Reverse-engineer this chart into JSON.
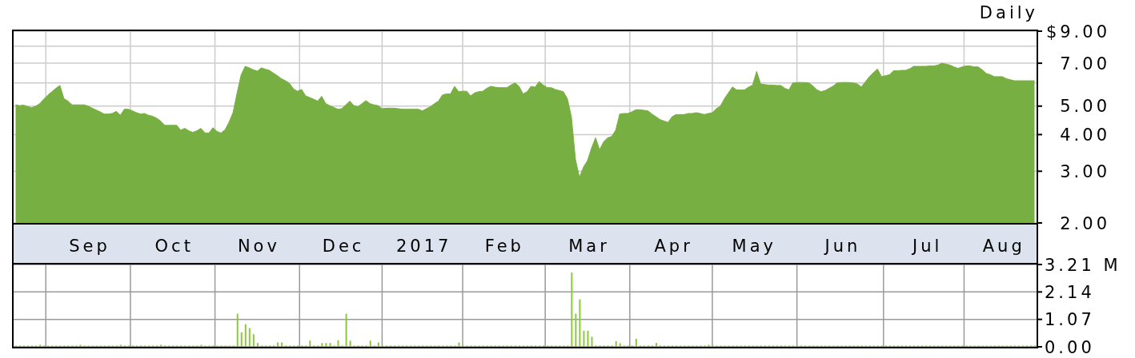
{
  "chart_data": [
    {
      "type": "area",
      "title": "Daily",
      "categories": [
        null,
        null,
        null,
        null,
        null,
        null,
        null,
        null,
        null,
        null,
        null,
        null,
        null,
        null,
        null,
        null,
        null,
        null,
        "Sep",
        null,
        null,
        null,
        null,
        null,
        null,
        null,
        null,
        null,
        null,
        null,
        null,
        null,
        null,
        null,
        null,
        null,
        null,
        null,
        null,
        "Oct",
        null,
        null,
        null,
        null,
        null,
        null,
        null,
        null,
        null,
        null,
        null,
        null,
        null,
        null,
        null,
        null,
        null,
        null,
        null,
        null,
        "Nov",
        null,
        null,
        null,
        null,
        null,
        null,
        null,
        null,
        null,
        null,
        null,
        null,
        null,
        null,
        null,
        null,
        null,
        null,
        null,
        null,
        "Dec",
        null,
        null,
        null,
        null,
        null,
        null,
        null,
        null,
        null,
        null,
        null,
        null,
        null,
        null,
        null,
        null,
        null,
        null,
        null,
        "2017",
        null,
        null,
        null,
        null,
        null,
        null,
        null,
        null,
        null,
        null,
        null,
        null,
        null,
        null,
        null,
        null,
        null,
        null,
        null,
        "Feb",
        null,
        null,
        null,
        null,
        null,
        null,
        null,
        null,
        null,
        null,
        null,
        null,
        null,
        null,
        null,
        null,
        null,
        null,
        null,
        null,
        "Mar",
        null,
        null,
        null,
        null,
        null,
        null,
        null,
        null,
        null,
        null,
        null,
        null,
        null,
        null,
        null,
        null,
        null,
        null,
        null,
        null,
        "Apr",
        null,
        null,
        null,
        null,
        null,
        null,
        null,
        null,
        null,
        null,
        null,
        null,
        null,
        null,
        null,
        null,
        null,
        null,
        null,
        "May",
        null,
        null,
        null,
        null,
        null,
        null,
        null,
        null,
        null,
        null,
        null,
        null,
        null,
        null,
        null,
        null,
        null,
        null,
        null,
        null,
        null,
        "Jun",
        null,
        null,
        null,
        null,
        null,
        null,
        null,
        null,
        null,
        null,
        null,
        null,
        null,
        null,
        null,
        null,
        null,
        null,
        null,
        null,
        "Jul",
        null,
        null,
        null,
        null,
        null,
        null,
        null,
        null,
        null,
        null,
        null,
        null,
        null,
        null,
        null,
        null,
        null,
        null,
        "Aug",
        null,
        null,
        null,
        null,
        null,
        null,
        null,
        null
      ],
      "values": [
        5.05,
        5.02,
        5.04,
        4.98,
        4.94,
        5.0,
        5.1,
        5.28,
        5.45,
        5.6,
        5.75,
        5.88,
        5.3,
        5.2,
        5.05,
        5.05,
        5.05,
        5.05,
        5.0,
        4.92,
        4.85,
        4.78,
        4.7,
        4.7,
        4.72,
        4.8,
        4.65,
        4.88,
        4.88,
        4.82,
        4.75,
        4.7,
        4.72,
        4.65,
        4.62,
        4.55,
        4.45,
        4.3,
        4.3,
        4.3,
        4.3,
        4.14,
        4.2,
        4.12,
        4.07,
        4.12,
        4.2,
        4.05,
        4.05,
        4.22,
        4.1,
        4.05,
        4.15,
        4.41,
        4.76,
        5.55,
        6.39,
        6.83,
        6.75,
        6.65,
        6.58,
        6.75,
        6.68,
        6.62,
        6.48,
        6.35,
        6.2,
        6.1,
        5.98,
        5.72,
        5.62,
        5.7,
        5.42,
        5.35,
        5.28,
        5.2,
        5.4,
        5.1,
        5.02,
        4.95,
        4.88,
        4.9,
        5.05,
        5.2,
        5.02,
        4.98,
        5.1,
        5.22,
        5.1,
        5.05,
        5.02,
        4.9,
        4.92,
        4.92,
        4.92,
        4.9,
        4.88,
        4.88,
        4.88,
        4.88,
        4.88,
        4.82,
        4.9,
        4.98,
        5.1,
        5.2,
        5.46,
        5.5,
        5.5,
        5.84,
        5.6,
        5.62,
        5.62,
        5.42,
        5.55,
        5.6,
        5.62,
        5.75,
        5.84,
        5.8,
        5.78,
        5.78,
        5.78,
        5.9,
        6.0,
        5.84,
        5.5,
        5.6,
        5.84,
        5.8,
        6.06,
        5.9,
        5.78,
        5.78,
        5.7,
        5.65,
        5.6,
        5.3,
        4.6,
        3.3,
        2.86,
        3.1,
        3.26,
        3.6,
        3.9,
        3.55,
        3.78,
        3.9,
        3.94,
        4.14,
        4.7,
        4.72,
        4.72,
        4.78,
        4.86,
        4.86,
        4.84,
        4.82,
        4.7,
        4.6,
        4.5,
        4.45,
        4.4,
        4.6,
        4.68,
        4.68,
        4.68,
        4.72,
        4.72,
        4.75,
        4.72,
        4.68,
        4.72,
        4.75,
        4.9,
        5.0,
        5.3,
        5.55,
        5.81,
        5.68,
        5.68,
        5.68,
        5.8,
        5.9,
        6.56,
        5.95,
        5.92,
        5.9,
        5.9,
        5.88,
        5.88,
        5.75,
        5.68,
        6.0,
        6.02,
        6.02,
        6.02,
        6.0,
        5.85,
        5.68,
        5.6,
        5.65,
        5.75,
        5.85,
        6.0,
        6.02,
        6.02,
        6.02,
        6.0,
        5.95,
        5.81,
        6.05,
        6.3,
        6.5,
        6.69,
        6.3,
        6.35,
        6.4,
        6.6,
        6.6,
        6.62,
        6.62,
        6.7,
        6.83,
        6.83,
        6.83,
        6.83,
        6.85,
        6.85,
        6.9,
        7.0,
        6.95,
        6.9,
        6.8,
        6.72,
        6.8,
        6.85,
        6.85,
        6.8,
        6.8,
        6.65,
        6.46,
        6.4,
        6.3,
        6.3,
        6.3,
        6.2,
        6.15,
        6.1,
        6.1,
        6.1,
        6.1,
        6.1,
        6.1
      ],
      "color": "#78af42",
      "log": true,
      "ylim": [
        2,
        9
      ],
      "yticks": [
        {
          "value": 9,
          "label": "$9.00"
        },
        {
          "value": 8,
          "label": null
        },
        {
          "value": 7,
          "label": "7.00"
        },
        {
          "value": 6,
          "label": null
        },
        {
          "value": 5,
          "label": "5.00"
        },
        {
          "value": 4,
          "label": "4.00"
        },
        {
          "value": 3,
          "label": "3.00"
        },
        {
          "value": 2,
          "label": "2.00"
        }
      ],
      "grid": true
    },
    {
      "type": "bar",
      "categories": [
        null,
        null,
        null,
        null,
        null,
        null,
        null,
        null,
        null,
        null,
        null,
        null,
        null,
        null,
        null,
        null,
        null,
        null,
        null,
        null,
        null,
        null,
        null,
        null,
        null,
        null,
        null,
        null,
        null,
        null,
        null,
        null,
        null,
        null,
        null,
        null,
        null,
        null,
        null,
        null,
        null,
        null,
        null,
        null,
        null,
        null,
        null,
        null,
        null,
        null,
        null,
        null,
        null,
        null,
        null,
        null,
        null,
        null,
        null,
        null,
        null,
        null,
        null,
        null,
        null,
        null,
        null,
        null,
        null,
        null,
        null,
        null,
        null,
        null,
        null,
        null,
        null,
        null,
        null,
        null,
        null,
        null,
        null,
        null,
        null,
        null,
        null,
        null,
        null,
        null,
        null,
        null,
        null,
        null,
        null,
        null,
        null,
        null,
        null,
        null,
        null,
        null,
        null,
        null,
        null,
        null,
        null,
        null,
        null,
        null,
        null,
        null,
        null,
        null,
        null,
        null,
        null,
        null,
        null,
        null,
        null,
        null,
        null,
        null,
        null,
        null,
        null,
        null,
        null,
        null,
        null,
        null,
        null,
        null,
        null,
        null,
        null,
        null,
        null,
        null,
        null,
        null,
        null,
        null,
        null,
        null,
        null,
        null,
        null,
        null,
        null,
        null,
        null,
        null,
        null,
        null,
        null,
        null,
        null,
        null,
        null,
        null,
        null,
        null,
        null,
        null,
        null,
        null,
        null,
        null,
        null,
        null,
        null,
        null,
        null,
        null,
        null,
        null,
        null,
        null,
        null,
        null,
        null,
        null,
        null,
        null,
        null,
        null,
        null,
        null,
        null,
        null,
        null,
        null,
        null,
        null,
        null,
        null,
        null,
        null,
        null,
        null,
        null,
        null,
        null,
        null,
        null,
        null,
        null,
        null,
        null,
        null,
        null,
        null,
        null,
        null,
        null,
        null,
        null,
        null,
        null,
        null,
        null,
        null,
        null,
        null,
        null,
        null,
        null,
        null,
        null,
        null,
        null,
        null,
        null,
        null,
        null,
        null,
        null,
        null,
        null,
        null,
        null,
        null,
        null,
        null,
        null,
        null,
        null,
        null,
        null,
        null,
        null,
        null
      ],
      "values": [
        0.05,
        0.05,
        0.05,
        0.05,
        0.05,
        0.05,
        0.08,
        0.05,
        0.05,
        0.05,
        0.05,
        0.05,
        0.05,
        0.05,
        0.05,
        0.05,
        0.08,
        0.05,
        0.05,
        0.05,
        0.05,
        0.05,
        0.05,
        0.05,
        0.05,
        0.05,
        0.08,
        0.05,
        0.05,
        0.05,
        0.05,
        0.05,
        0.05,
        0.05,
        0.05,
        0.05,
        0.08,
        0.05,
        0.05,
        0.05,
        0.05,
        0.05,
        0.05,
        0.05,
        0.05,
        0.05,
        0.08,
        0.05,
        0.05,
        0.05,
        0.05,
        0.05,
        0.05,
        0.05,
        0.05,
        1.29,
        0.56,
        0.88,
        0.73,
        0.49,
        0.15,
        0.05,
        0.05,
        0.05,
        0.05,
        0.17,
        0.17,
        0.05,
        0.05,
        0.05,
        0.05,
        0.05,
        0.05,
        0.24,
        0.05,
        0.05,
        0.15,
        0.15,
        0.15,
        0.05,
        0.25,
        0.05,
        1.29,
        0.24,
        0.05,
        0.05,
        0.05,
        0.05,
        0.24,
        0.05,
        0.17,
        0.05,
        0.05,
        0.05,
        0.05,
        0.05,
        0.05,
        0.05,
        0.05,
        0.05,
        0.05,
        0.05,
        0.05,
        0.05,
        0.05,
        0.05,
        0.05,
        0.05,
        0.05,
        0.05,
        0.17,
        0.05,
        0.05,
        0.05,
        0.05,
        0.05,
        0.05,
        0.05,
        0.05,
        0.05,
        0.05,
        0.05,
        0.05,
        0.05,
        0.05,
        0.05,
        0.05,
        0.05,
        0.05,
        0.05,
        0.05,
        0.05,
        0.05,
        0.05,
        0.05,
        0.05,
        0.05,
        0.05,
        2.9,
        1.29,
        1.85,
        0.63,
        0.63,
        0.39,
        0.05,
        0.05,
        0.05,
        0.05,
        0.05,
        0.22,
        0.14,
        0.05,
        0.05,
        0.05,
        0.31,
        0.05,
        0.05,
        0.05,
        0.05,
        0.15,
        0.05,
        0.05,
        0.05,
        0.05,
        0.05,
        0.05,
        0.05,
        0.05,
        0.05,
        0.05,
        0.05,
        0.05,
        0.08,
        0.05,
        0.05,
        0.05,
        0.05,
        0.05,
        0.05,
        0.05,
        0.05,
        0.05,
        0.05,
        0.05,
        0.05,
        0.05,
        0.05,
        0.05,
        0.05,
        0.05,
        0.05,
        0.05,
        0.05,
        0.05,
        0.05,
        0.05,
        0.05,
        0.05,
        0.05,
        0.05,
        0.05,
        0.05,
        0.05,
        0.05,
        0.05,
        0.05,
        0.05,
        0.05,
        0.05,
        0.05,
        0.05,
        0.05,
        0.05,
        0.05,
        0.05,
        0.05,
        0.05,
        0.05,
        0.05,
        0.05,
        0.05,
        0.05,
        0.05,
        0.05,
        0.05,
        0.05,
        0.05,
        0.05,
        0.05,
        0.05,
        0.05,
        0.05,
        0.05,
        0.05,
        0.05,
        0.05,
        0.05,
        0.05,
        0.05,
        0.05,
        0.05,
        0.05,
        0.05,
        0.05,
        0.05,
        0.05,
        0.05,
        0.05,
        0.05,
        0.05,
        0.05,
        0.05,
        0.05,
        0.05
      ],
      "color": "#8dc63f",
      "ylim": [
        0,
        3.21
      ],
      "yticks": [
        {
          "value": 0,
          "label": "0.00"
        },
        1.07,
        2.14,
        {
          "value": 3.21,
          "label": "3.21 M"
        }
      ],
      "grid": true,
      "tick_labels": "y"
    }
  ]
}
